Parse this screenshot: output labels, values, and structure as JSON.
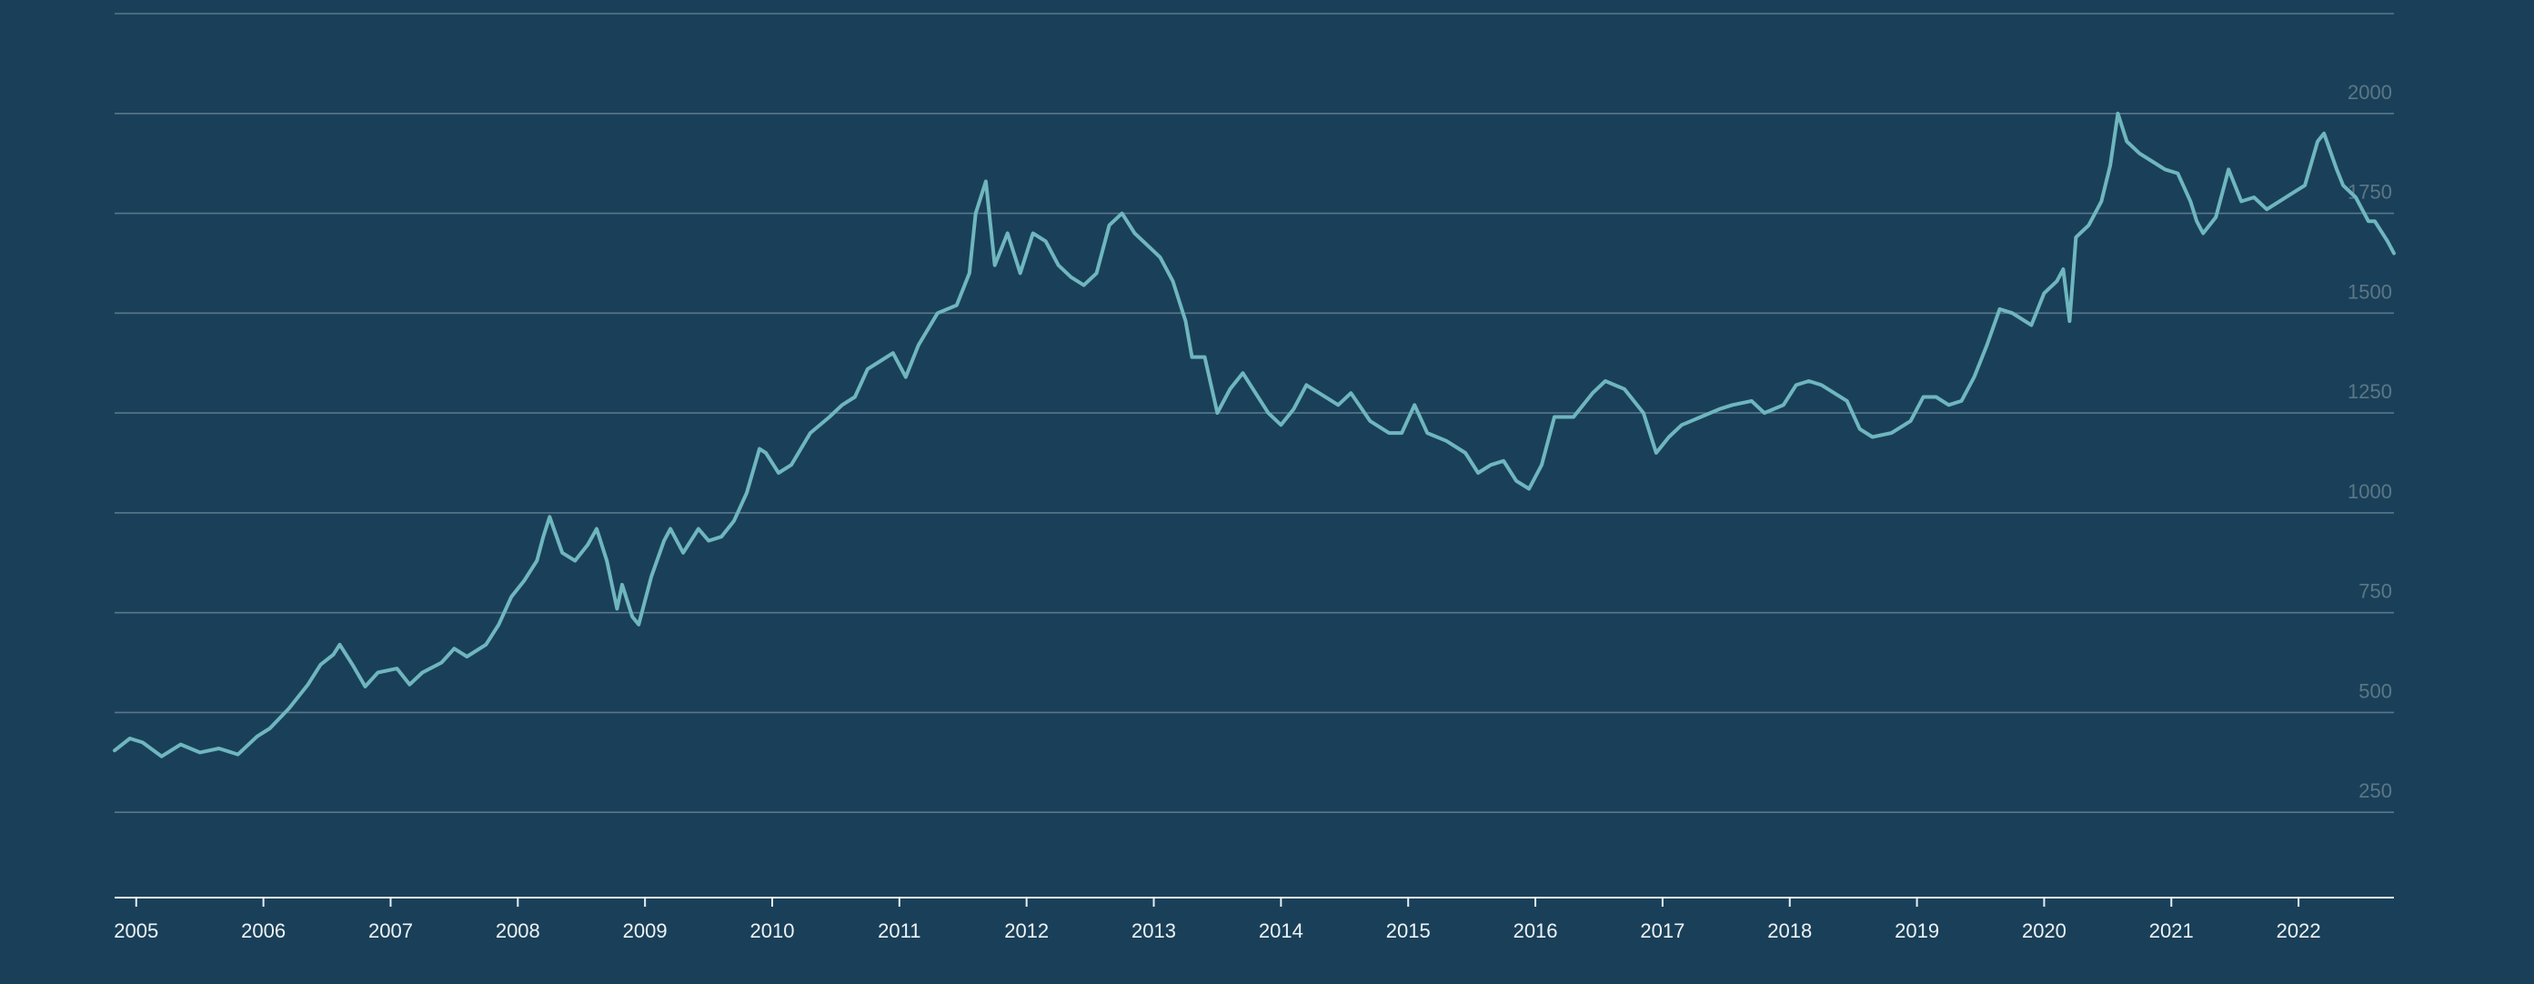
{
  "colors": {
    "background": "#1a4059",
    "line": "#6fb6bf",
    "grid": "#8da4b3",
    "axis": "#e8eef2",
    "y_label": "#5b7787",
    "x_label": "#eef3f6"
  },
  "chart_data": {
    "type": "line",
    "title": "",
    "xlabel": "",
    "ylabel": "",
    "grid": true,
    "y_axis_side": "right",
    "xlim": [
      2004.83,
      2022.75
    ],
    "ylim": [
      0,
      2250
    ],
    "y_ticks": [
      250,
      500,
      750,
      1000,
      1250,
      1500,
      1750,
      2000
    ],
    "y_gridlines": [
      250,
      500,
      750,
      1000,
      1250,
      1500,
      1750,
      2000,
      2250
    ],
    "x_ticks": [
      "2005",
      "2006",
      "2007",
      "2008",
      "2009",
      "2010",
      "2011",
      "2012",
      "2013",
      "2014",
      "2015",
      "2016",
      "2017",
      "2018",
      "2019",
      "2020",
      "2021",
      "2022"
    ],
    "series": [
      {
        "name": "",
        "points": [
          [
            2004.83,
            405
          ],
          [
            2004.95,
            435
          ],
          [
            2005.05,
            425
          ],
          [
            2005.2,
            390
          ],
          [
            2005.35,
            420
          ],
          [
            2005.5,
            400
          ],
          [
            2005.65,
            410
          ],
          [
            2005.8,
            395
          ],
          [
            2005.95,
            440
          ],
          [
            2006.05,
            460
          ],
          [
            2006.2,
            510
          ],
          [
            2006.35,
            570
          ],
          [
            2006.45,
            620
          ],
          [
            2006.55,
            645
          ],
          [
            2006.6,
            670
          ],
          [
            2006.7,
            620
          ],
          [
            2006.8,
            565
          ],
          [
            2006.9,
            600
          ],
          [
            2007.05,
            610
          ],
          [
            2007.15,
            570
          ],
          [
            2007.25,
            600
          ],
          [
            2007.4,
            625
          ],
          [
            2007.5,
            660
          ],
          [
            2007.6,
            640
          ],
          [
            2007.75,
            670
          ],
          [
            2007.85,
            720
          ],
          [
            2007.95,
            790
          ],
          [
            2008.05,
            830
          ],
          [
            2008.15,
            880
          ],
          [
            2008.2,
            940
          ],
          [
            2008.25,
            990
          ],
          [
            2008.35,
            900
          ],
          [
            2008.45,
            880
          ],
          [
            2008.55,
            920
          ],
          [
            2008.62,
            960
          ],
          [
            2008.7,
            880
          ],
          [
            2008.78,
            760
          ],
          [
            2008.82,
            820
          ],
          [
            2008.9,
            740
          ],
          [
            2008.95,
            720
          ],
          [
            2009.05,
            840
          ],
          [
            2009.15,
            930
          ],
          [
            2009.2,
            960
          ],
          [
            2009.3,
            900
          ],
          [
            2009.42,
            960
          ],
          [
            2009.5,
            930
          ],
          [
            2009.6,
            940
          ],
          [
            2009.7,
            980
          ],
          [
            2009.8,
            1050
          ],
          [
            2009.9,
            1160
          ],
          [
            2009.95,
            1150
          ],
          [
            2010.05,
            1100
          ],
          [
            2010.15,
            1120
          ],
          [
            2010.3,
            1200
          ],
          [
            2010.45,
            1240
          ],
          [
            2010.55,
            1270
          ],
          [
            2010.65,
            1290
          ],
          [
            2010.75,
            1360
          ],
          [
            2010.85,
            1380
          ],
          [
            2010.95,
            1400
          ],
          [
            2011.05,
            1340
          ],
          [
            2011.15,
            1420
          ],
          [
            2011.3,
            1500
          ],
          [
            2011.45,
            1520
          ],
          [
            2011.55,
            1600
          ],
          [
            2011.6,
            1750
          ],
          [
            2011.68,
            1830
          ],
          [
            2011.75,
            1620
          ],
          [
            2011.85,
            1700
          ],
          [
            2011.95,
            1600
          ],
          [
            2012.05,
            1700
          ],
          [
            2012.15,
            1680
          ],
          [
            2012.25,
            1620
          ],
          [
            2012.35,
            1590
          ],
          [
            2012.45,
            1570
          ],
          [
            2012.55,
            1600
          ],
          [
            2012.65,
            1720
          ],
          [
            2012.75,
            1750
          ],
          [
            2012.85,
            1700
          ],
          [
            2012.95,
            1670
          ],
          [
            2013.05,
            1640
          ],
          [
            2013.15,
            1580
          ],
          [
            2013.25,
            1480
          ],
          [
            2013.3,
            1390
          ],
          [
            2013.4,
            1390
          ],
          [
            2013.5,
            1250
          ],
          [
            2013.6,
            1310
          ],
          [
            2013.7,
            1350
          ],
          [
            2013.8,
            1300
          ],
          [
            2013.9,
            1250
          ],
          [
            2014.0,
            1220
          ],
          [
            2014.1,
            1260
          ],
          [
            2014.2,
            1320
          ],
          [
            2014.3,
            1300
          ],
          [
            2014.45,
            1270
          ],
          [
            2014.55,
            1300
          ],
          [
            2014.7,
            1230
          ],
          [
            2014.85,
            1200
          ],
          [
            2014.95,
            1200
          ],
          [
            2015.05,
            1270
          ],
          [
            2015.15,
            1200
          ],
          [
            2015.3,
            1180
          ],
          [
            2015.45,
            1150
          ],
          [
            2015.55,
            1100
          ],
          [
            2015.65,
            1120
          ],
          [
            2015.75,
            1130
          ],
          [
            2015.85,
            1080
          ],
          [
            2015.95,
            1060
          ],
          [
            2016.05,
            1120
          ],
          [
            2016.15,
            1240
          ],
          [
            2016.3,
            1240
          ],
          [
            2016.45,
            1300
          ],
          [
            2016.55,
            1330
          ],
          [
            2016.7,
            1310
          ],
          [
            2016.85,
            1250
          ],
          [
            2016.95,
            1150
          ],
          [
            2017.05,
            1190
          ],
          [
            2017.15,
            1220
          ],
          [
            2017.3,
            1240
          ],
          [
            2017.45,
            1260
          ],
          [
            2017.55,
            1270
          ],
          [
            2017.7,
            1280
          ],
          [
            2017.8,
            1250
          ],
          [
            2017.95,
            1270
          ],
          [
            2018.05,
            1320
          ],
          [
            2018.15,
            1330
          ],
          [
            2018.25,
            1320
          ],
          [
            2018.35,
            1300
          ],
          [
            2018.45,
            1280
          ],
          [
            2018.55,
            1210
          ],
          [
            2018.65,
            1190
          ],
          [
            2018.8,
            1200
          ],
          [
            2018.95,
            1230
          ],
          [
            2019.05,
            1290
          ],
          [
            2019.15,
            1290
          ],
          [
            2019.25,
            1270
          ],
          [
            2019.35,
            1280
          ],
          [
            2019.45,
            1340
          ],
          [
            2019.55,
            1420
          ],
          [
            2019.65,
            1510
          ],
          [
            2019.75,
            1500
          ],
          [
            2019.9,
            1470
          ],
          [
            2020.0,
            1550
          ],
          [
            2020.1,
            1580
          ],
          [
            2020.15,
            1610
          ],
          [
            2020.2,
            1480
          ],
          [
            2020.25,
            1690
          ],
          [
            2020.35,
            1720
          ],
          [
            2020.45,
            1780
          ],
          [
            2020.52,
            1870
          ],
          [
            2020.58,
            2000
          ],
          [
            2020.65,
            1930
          ],
          [
            2020.75,
            1900
          ],
          [
            2020.85,
            1880
          ],
          [
            2020.95,
            1860
          ],
          [
            2021.05,
            1850
          ],
          [
            2021.15,
            1780
          ],
          [
            2021.2,
            1730
          ],
          [
            2021.25,
            1700
          ],
          [
            2021.35,
            1740
          ],
          [
            2021.45,
            1860
          ],
          [
            2021.55,
            1780
          ],
          [
            2021.65,
            1790
          ],
          [
            2021.75,
            1760
          ],
          [
            2021.85,
            1780
          ],
          [
            2021.95,
            1800
          ],
          [
            2022.05,
            1820
          ],
          [
            2022.15,
            1930
          ],
          [
            2022.2,
            1950
          ],
          [
            2022.3,
            1860
          ],
          [
            2022.35,
            1820
          ],
          [
            2022.45,
            1790
          ],
          [
            2022.55,
            1730
          ],
          [
            2022.6,
            1730
          ],
          [
            2022.7,
            1680
          ],
          [
            2022.75,
            1650
          ]
        ]
      }
    ]
  }
}
